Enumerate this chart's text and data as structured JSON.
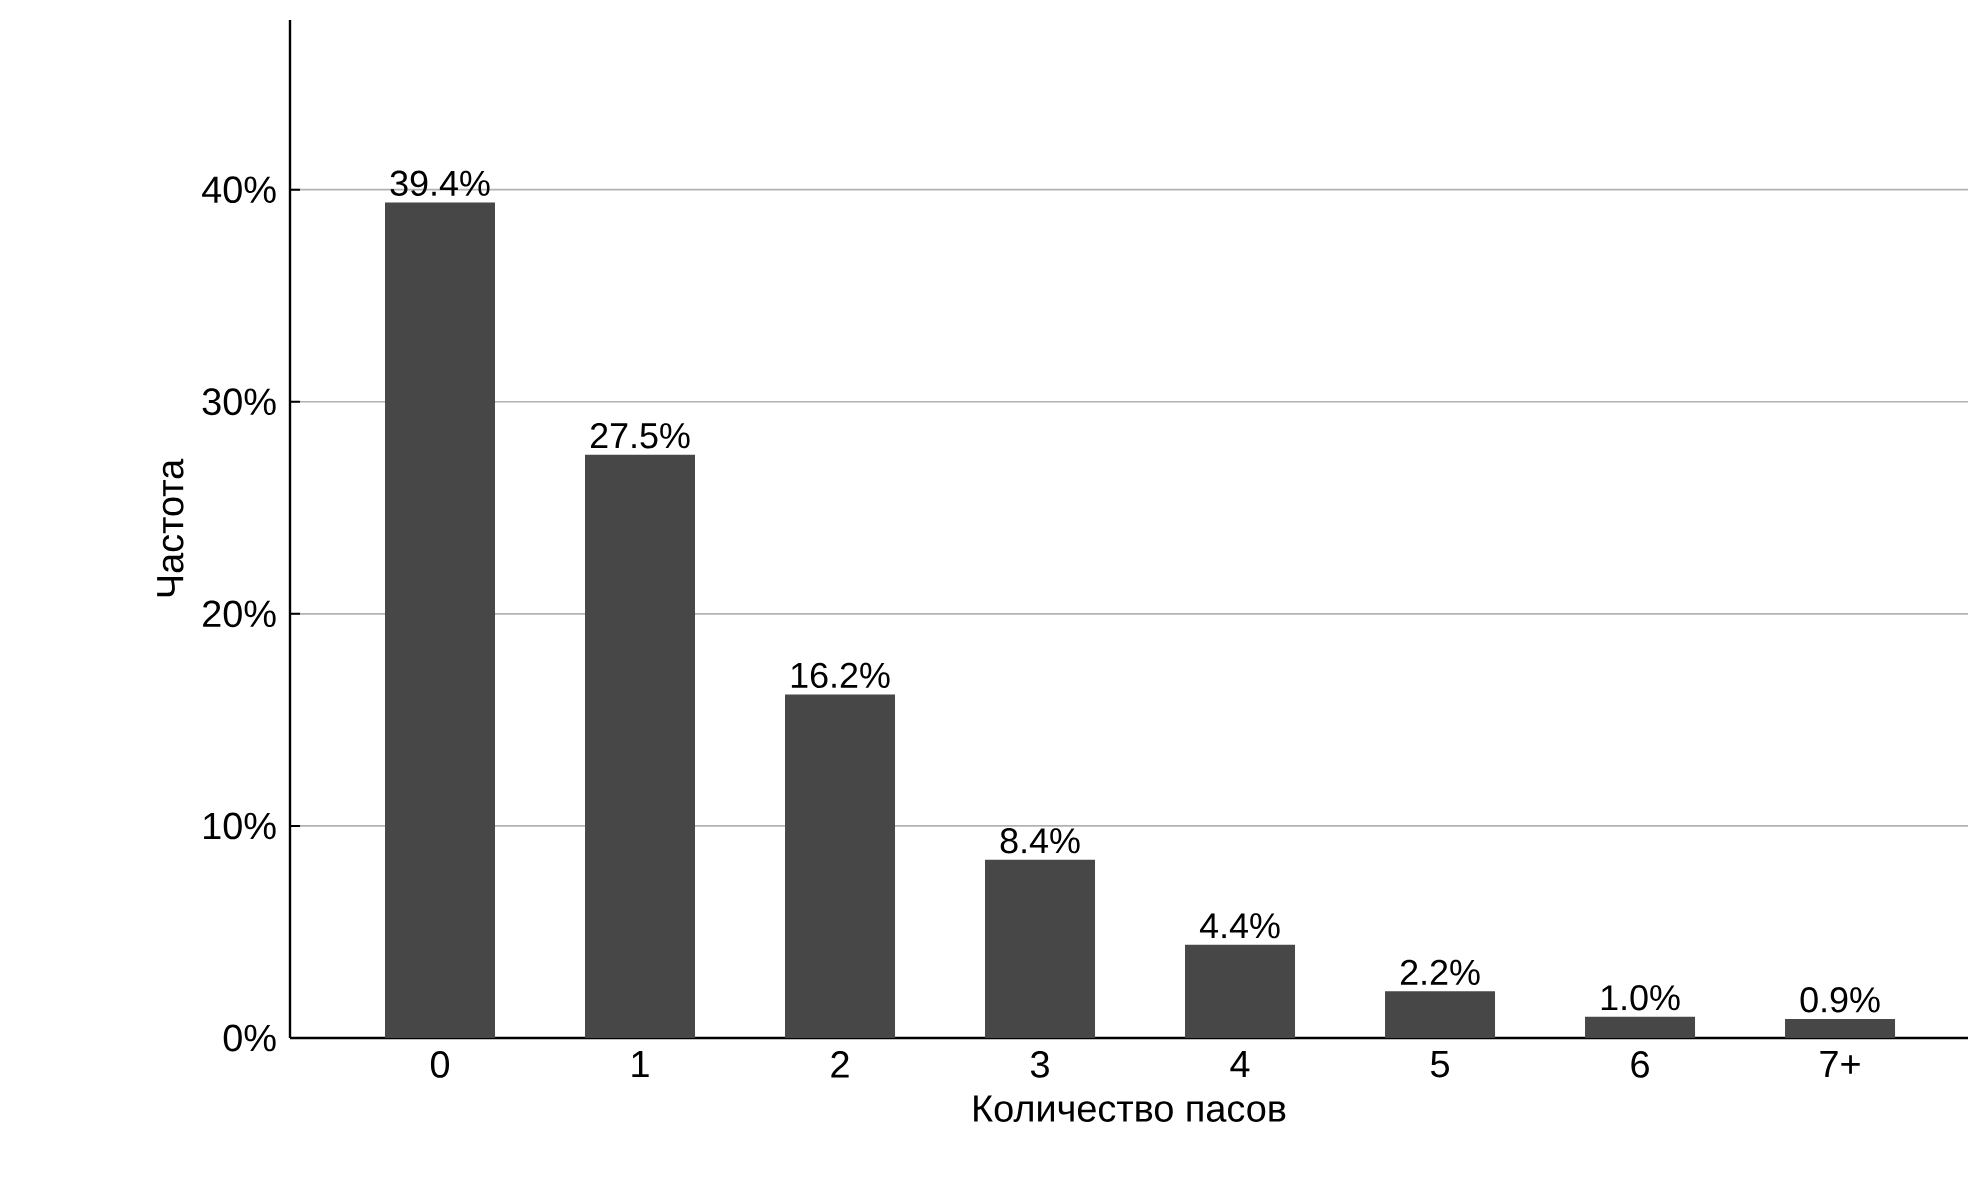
{
  "chart_data": {
    "type": "bar",
    "xlabel": "Количество пасов",
    "ylabel": "Частота",
    "categories": [
      "0",
      "1",
      "2",
      "3",
      "4",
      "5",
      "6",
      "7+"
    ],
    "values": [
      39.4,
      27.5,
      16.2,
      8.4,
      4.4,
      2.2,
      1.0,
      0.9
    ],
    "value_labels": [
      "39.4%",
      "27.5%",
      "16.2%",
      "8.4%",
      "4.4%",
      "2.2%",
      "1.0%",
      "0.9%"
    ],
    "color": "#474747",
    "ylim": [
      0,
      48
    ],
    "yticks": [
      {
        "value": 0,
        "label": "0%"
      },
      {
        "value": 10,
        "label": "10%"
      },
      {
        "value": 20,
        "label": "20%"
      },
      {
        "value": 30,
        "label": "30%"
      },
      {
        "value": 40,
        "label": "40%"
      }
    ],
    "grid": "y"
  }
}
